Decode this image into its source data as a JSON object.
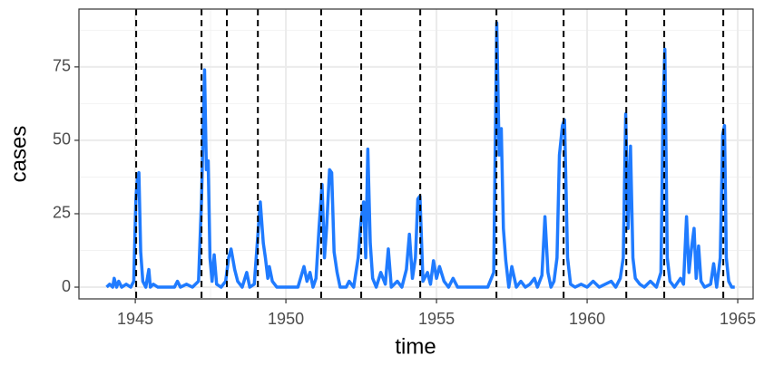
{
  "chart_data": {
    "type": "line",
    "xlabel": "time",
    "ylabel": "cases",
    "xlim": [
      1943.13,
      1965.51
    ],
    "ylim": [
      -4,
      94.7
    ],
    "xticks": [
      1945,
      1950,
      1955,
      1960,
      1965
    ],
    "yticks": [
      0,
      25,
      50,
      75
    ],
    "xminorticks": [
      1947.5,
      1952.5,
      1957.5,
      1962.5
    ],
    "yminorticks": [
      12.5,
      37.5,
      62.5,
      87.5
    ],
    "grid": true,
    "vlines": [
      1945.03,
      1947.2,
      1948.04,
      1949.07,
      1951.17,
      1952.5,
      1954.46,
      1956.99,
      1959.22,
      1961.3,
      1962.56,
      1964.52
    ],
    "vline_color": "#000000",
    "x": [
      1944.05,
      1944.15,
      1944.25,
      1944.3,
      1944.38,
      1944.45,
      1944.55,
      1944.7,
      1944.85,
      1944.95,
      1945.02,
      1945.07,
      1945.12,
      1945.18,
      1945.25,
      1945.35,
      1945.45,
      1945.5,
      1945.6,
      1945.75,
      1946.0,
      1946.3,
      1946.4,
      1946.5,
      1946.7,
      1946.9,
      1947.1,
      1947.2,
      1947.3,
      1947.36,
      1947.42,
      1947.48,
      1947.55,
      1947.62,
      1947.7,
      1947.85,
      1948.0,
      1948.1,
      1948.18,
      1948.3,
      1948.4,
      1948.55,
      1948.7,
      1948.8,
      1948.95,
      1949.05,
      1949.15,
      1949.25,
      1949.32,
      1949.4,
      1949.45,
      1949.55,
      1949.7,
      1950.0,
      1950.4,
      1950.6,
      1950.7,
      1950.8,
      1950.9,
      1951.0,
      1951.1,
      1951.2,
      1951.28,
      1951.35,
      1951.45,
      1951.52,
      1951.6,
      1951.7,
      1951.8,
      1952.0,
      1952.1,
      1952.25,
      1952.4,
      1952.5,
      1952.58,
      1952.65,
      1952.72,
      1952.8,
      1952.88,
      1953.0,
      1953.15,
      1953.3,
      1953.4,
      1953.5,
      1953.7,
      1953.85,
      1954.0,
      1954.1,
      1954.2,
      1954.3,
      1954.38,
      1954.45,
      1954.55,
      1954.7,
      1954.8,
      1954.9,
      1955.0,
      1955.1,
      1955.25,
      1955.4,
      1955.55,
      1955.7,
      1956.0,
      1956.4,
      1956.7,
      1956.9,
      1957.0,
      1957.08,
      1957.15,
      1957.22,
      1957.3,
      1957.4,
      1957.5,
      1957.65,
      1957.8,
      1957.95,
      1958.1,
      1958.25,
      1958.35,
      1958.5,
      1958.6,
      1958.7,
      1958.8,
      1958.9,
      1959.0,
      1959.08,
      1959.18,
      1959.25,
      1959.35,
      1959.45,
      1959.6,
      1959.8,
      1960.0,
      1960.2,
      1960.4,
      1960.6,
      1960.8,
      1960.95,
      1961.1,
      1961.2,
      1961.28,
      1961.36,
      1961.44,
      1961.52,
      1961.6,
      1961.75,
      1961.9,
      1962.1,
      1962.3,
      1962.45,
      1962.52,
      1962.58,
      1962.66,
      1962.75,
      1962.9,
      1963.1,
      1963.2,
      1963.3,
      1963.38,
      1963.45,
      1963.55,
      1963.62,
      1963.7,
      1963.78,
      1963.9,
      1964.1,
      1964.2,
      1964.3,
      1964.42,
      1964.5,
      1964.56,
      1964.62,
      1964.7,
      1964.8,
      1964.9
    ],
    "series": [
      {
        "color": "#1f7bff",
        "values": [
          0,
          1,
          0,
          3,
          0,
          2,
          0,
          1,
          0,
          2,
          30,
          37,
          39,
          12,
          2,
          0,
          6,
          0,
          1,
          0,
          0,
          0,
          2,
          0,
          1,
          0,
          2,
          30,
          74,
          40,
          43,
          10,
          2,
          11,
          1,
          0,
          2,
          10,
          13,
          6,
          2,
          0,
          5,
          0,
          1,
          15,
          29,
          15,
          10,
          3,
          7,
          2,
          0,
          0,
          0,
          7,
          2,
          5,
          0,
          3,
          20,
          35,
          10,
          20,
          40,
          39,
          12,
          5,
          0,
          0,
          2,
          0,
          10,
          23,
          29,
          10,
          47,
          15,
          3,
          0,
          5,
          1,
          13,
          0,
          2,
          0,
          6,
          18,
          3,
          10,
          30,
          31,
          2,
          5,
          1,
          9,
          3,
          7,
          2,
          0,
          3,
          0,
          0,
          0,
          0,
          5,
          90,
          45,
          54,
          20,
          9,
          0,
          7,
          0,
          2,
          0,
          1,
          3,
          0,
          4,
          24,
          5,
          0,
          2,
          10,
          45,
          55,
          57,
          10,
          1,
          0,
          1,
          0,
          2,
          0,
          1,
          2,
          0,
          3,
          10,
          59,
          20,
          48,
          10,
          3,
          1,
          0,
          2,
          0,
          5,
          60,
          81,
          10,
          2,
          0,
          3,
          1,
          24,
          5,
          12,
          20,
          3,
          14,
          2,
          0,
          1,
          8,
          0,
          10,
          52,
          55,
          10,
          2,
          0,
          0
        ]
      }
    ]
  }
}
